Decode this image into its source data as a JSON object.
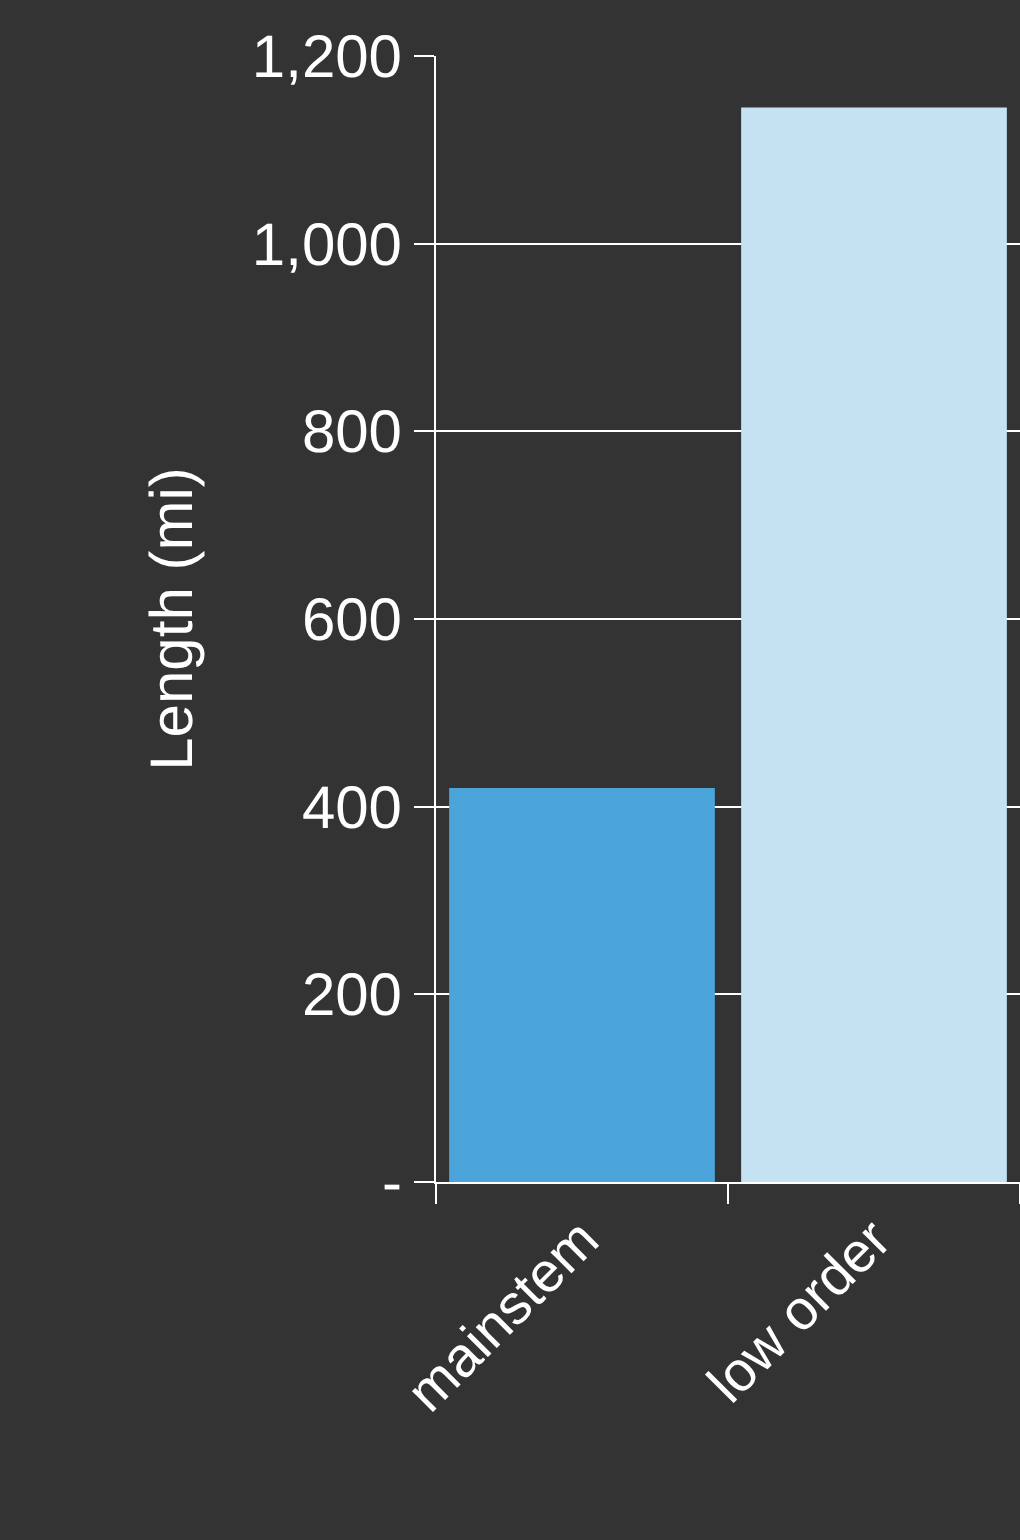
{
  "chart_data": {
    "type": "bar",
    "ylabel": "Length (mi)",
    "categories": [
      "mainstem",
      "low order"
    ],
    "colors": [
      "#4ba5da",
      "#c5e2f2"
    ],
    "values": [
      420,
      1145
    ],
    "ylim": [
      0,
      1200
    ],
    "yticks": [
      {
        "value": 0,
        "label": "-"
      },
      {
        "value": 200,
        "label": "200"
      },
      {
        "value": 400,
        "label": "400"
      },
      {
        "value": 600,
        "label": "600"
      },
      {
        "value": 800,
        "label": "800"
      },
      {
        "value": 1000,
        "label": "1,000"
      },
      {
        "value": 1200,
        "label": "1,200"
      }
    ],
    "grid": "y",
    "legend": false
  }
}
